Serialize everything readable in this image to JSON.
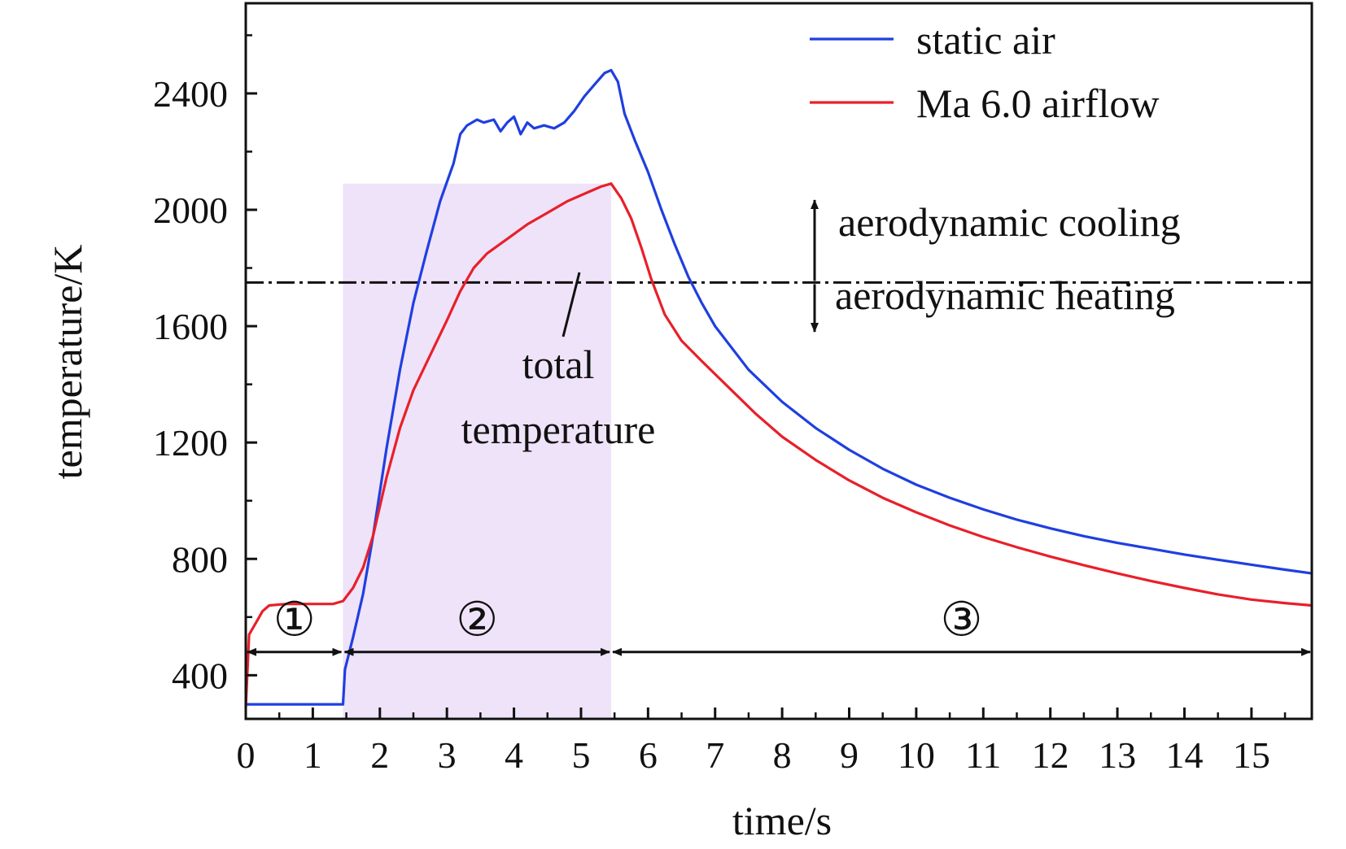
{
  "chart_data": {
    "type": "line",
    "xlabel": "time/s",
    "ylabel": "temperature/K",
    "xlim": [
      0,
      15.9
    ],
    "ylim": [
      250,
      2710
    ],
    "x_ticks": [
      0,
      1,
      2,
      3,
      4,
      5,
      6,
      7,
      8,
      9,
      10,
      11,
      12,
      13,
      14,
      15
    ],
    "x_tick_labels": [
      "0",
      "1",
      "2",
      "3",
      "4",
      "5",
      "6",
      "7",
      "8",
      "9",
      "10",
      "11",
      "12",
      "13",
      "14",
      "15"
    ],
    "y_ticks": [
      400,
      800,
      1200,
      1600,
      2000,
      2400
    ],
    "y_tick_labels": [
      "400",
      "800",
      "1200",
      "1600",
      "2000",
      "2400"
    ],
    "legend": {
      "position": "top-right"
    },
    "series": [
      {
        "name": "static air",
        "color": "#1f3fe0",
        "points": [
          [
            0,
            300
          ],
          [
            1.45,
            300
          ],
          [
            1.48,
            420
          ],
          [
            1.6,
            530
          ],
          [
            1.75,
            680
          ],
          [
            1.9,
            880
          ],
          [
            2.1,
            1180
          ],
          [
            2.3,
            1450
          ],
          [
            2.5,
            1680
          ],
          [
            2.7,
            1860
          ],
          [
            2.9,
            2030
          ],
          [
            3.1,
            2160
          ],
          [
            3.2,
            2260
          ],
          [
            3.3,
            2290
          ],
          [
            3.45,
            2310
          ],
          [
            3.55,
            2300
          ],
          [
            3.7,
            2310
          ],
          [
            3.8,
            2270
          ],
          [
            3.9,
            2300
          ],
          [
            4.0,
            2320
          ],
          [
            4.1,
            2260
          ],
          [
            4.2,
            2300
          ],
          [
            4.3,
            2280
          ],
          [
            4.45,
            2290
          ],
          [
            4.6,
            2280
          ],
          [
            4.75,
            2300
          ],
          [
            4.9,
            2340
          ],
          [
            5.05,
            2390
          ],
          [
            5.2,
            2430
          ],
          [
            5.35,
            2470
          ],
          [
            5.45,
            2480
          ],
          [
            5.55,
            2440
          ],
          [
            5.65,
            2330
          ],
          [
            5.8,
            2240
          ],
          [
            6.0,
            2130
          ],
          [
            6.2,
            2000
          ],
          [
            6.4,
            1880
          ],
          [
            6.6,
            1770
          ],
          [
            6.8,
            1680
          ],
          [
            7.0,
            1600
          ],
          [
            7.5,
            1450
          ],
          [
            8.0,
            1340
          ],
          [
            8.5,
            1250
          ],
          [
            9.0,
            1175
          ],
          [
            9.5,
            1110
          ],
          [
            10.0,
            1055
          ],
          [
            10.5,
            1010
          ],
          [
            11.0,
            970
          ],
          [
            11.5,
            935
          ],
          [
            12.0,
            905
          ],
          [
            12.5,
            878
          ],
          [
            13.0,
            855
          ],
          [
            13.5,
            835
          ],
          [
            14.0,
            815
          ],
          [
            14.5,
            797
          ],
          [
            15.0,
            780
          ],
          [
            15.5,
            763
          ],
          [
            15.9,
            750
          ]
        ]
      },
      {
        "name": "Ma 6.0 airflow",
        "color": "#e8202a",
        "points": [
          [
            0,
            290
          ],
          [
            0.05,
            540
          ],
          [
            0.15,
            580
          ],
          [
            0.25,
            620
          ],
          [
            0.35,
            640
          ],
          [
            0.6,
            645
          ],
          [
            1.0,
            645
          ],
          [
            1.3,
            645
          ],
          [
            1.45,
            655
          ],
          [
            1.6,
            700
          ],
          [
            1.75,
            770
          ],
          [
            1.9,
            880
          ],
          [
            2.1,
            1080
          ],
          [
            2.3,
            1250
          ],
          [
            2.5,
            1380
          ],
          [
            2.75,
            1500
          ],
          [
            3.0,
            1620
          ],
          [
            3.2,
            1720
          ],
          [
            3.4,
            1800
          ],
          [
            3.6,
            1850
          ],
          [
            3.9,
            1900
          ],
          [
            4.2,
            1950
          ],
          [
            4.5,
            1990
          ],
          [
            4.8,
            2030
          ],
          [
            5.1,
            2060
          ],
          [
            5.3,
            2080
          ],
          [
            5.45,
            2090
          ],
          [
            5.6,
            2040
          ],
          [
            5.75,
            1970
          ],
          [
            5.9,
            1870
          ],
          [
            6.05,
            1760
          ],
          [
            6.25,
            1640
          ],
          [
            6.5,
            1550
          ],
          [
            6.8,
            1480
          ],
          [
            7.2,
            1390
          ],
          [
            7.6,
            1300
          ],
          [
            8.0,
            1220
          ],
          [
            8.5,
            1140
          ],
          [
            9.0,
            1070
          ],
          [
            9.5,
            1010
          ],
          [
            10.0,
            960
          ],
          [
            10.5,
            915
          ],
          [
            11.0,
            875
          ],
          [
            11.5,
            840
          ],
          [
            12.0,
            808
          ],
          [
            12.5,
            778
          ],
          [
            13.0,
            750
          ],
          [
            13.5,
            724
          ],
          [
            14.0,
            700
          ],
          [
            14.5,
            678
          ],
          [
            15.0,
            660
          ],
          [
            15.5,
            648
          ],
          [
            15.9,
            640
          ]
        ]
      }
    ],
    "reference_line": {
      "y": 1750,
      "style": "dash-dot"
    },
    "shaded_region": {
      "x": [
        1.45,
        5.45
      ],
      "y_top": 2090,
      "color": "#efe3f9"
    },
    "stage_markers": [
      {
        "label": "①",
        "x_start": 0,
        "x_end": 1.45
      },
      {
        "label": "②",
        "x_start": 1.45,
        "x_end": 5.45
      },
      {
        "label": "③",
        "x_start": 5.45,
        "x_end": 15.9
      }
    ],
    "stage_arrow_y": 480,
    "annotations": {
      "cooling": "aerodynamic cooling",
      "heating": "aerodynamic heating",
      "total_line1": "total",
      "total_line2": "temperature"
    }
  }
}
